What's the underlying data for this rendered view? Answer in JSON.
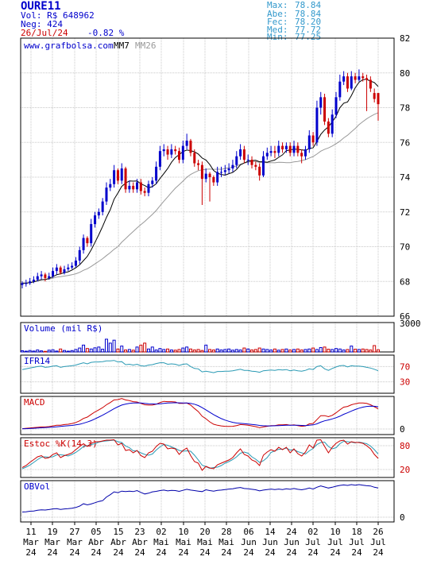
{
  "header": {
    "ticker": "OURE11",
    "volume": "Vol: R$ 648962",
    "trades": "Neg: 424",
    "date": "26/Jul/24",
    "change": "-0.82 %",
    "stats": [
      {
        "label": "Max:",
        "value": "78.84"
      },
      {
        "label": "Abe:",
        "value": "78.84"
      },
      {
        "label": "Fec:",
        "value": "78.20"
      },
      {
        "label": "Med:",
        "value": "77.72"
      },
      {
        "label": "Min:",
        "value": "77.25"
      }
    ]
  },
  "colors": {
    "up": "#0000cc",
    "down": "#cc0000",
    "text_blue": "#0000cc",
    "text_red": "#cc0000",
    "text_cyan": "#3399cc",
    "grid": "#c8c8c8",
    "cyan_line": "#2a9ab4",
    "ma26": "#999999"
  },
  "chart_data": [
    {
      "type": "candlestick",
      "panel": "price",
      "site_label": "www.grafbolsa.com",
      "ma_labels": [
        "MM7",
        "MM26"
      ],
      "ylim": [
        66,
        82
      ],
      "yticks": [
        66,
        68,
        70,
        72,
        74,
        76,
        78,
        80,
        82
      ],
      "grid": true,
      "x_tick_labels": [
        {
          "day": "11",
          "month": "Mar",
          "year": "24"
        },
        {
          "day": "19",
          "month": "Mar",
          "year": "24"
        },
        {
          "day": "27",
          "month": "Mar",
          "year": "24"
        },
        {
          "day": "05",
          "month": "Abr",
          "year": "24"
        },
        {
          "day": "15",
          "month": "Abr",
          "year": "24"
        },
        {
          "day": "23",
          "month": "Abr",
          "year": "24"
        },
        {
          "day": "02",
          "month": "Mai",
          "year": "24"
        },
        {
          "day": "10",
          "month": "Mai",
          "year": "24"
        },
        {
          "day": "20",
          "month": "Mai",
          "year": "24"
        },
        {
          "day": "28",
          "month": "Mai",
          "year": "24"
        },
        {
          "day": "06",
          "month": "Jun",
          "year": "24"
        },
        {
          "day": "14",
          "month": "Jun",
          "year": "24"
        },
        {
          "day": "24",
          "month": "Jun",
          "year": "24"
        },
        {
          "day": "02",
          "month": "Jul",
          "year": "24"
        },
        {
          "day": "10",
          "month": "Jul",
          "year": "24"
        },
        {
          "day": "18",
          "month": "Jul",
          "year": "24"
        },
        {
          "day": "26",
          "month": "Jul",
          "year": "24"
        }
      ],
      "close": [
        67.9,
        67.9,
        68.0,
        68.1,
        68.3,
        68.4,
        68.2,
        68.3,
        68.6,
        68.8,
        68.5,
        68.7,
        68.8,
        68.9,
        69.2,
        69.8,
        70.5,
        70.2,
        71.3,
        71.8,
        72.0,
        72.6,
        73.4,
        73.6,
        74.4,
        73.8,
        74.5,
        73.3,
        73.5,
        73.3,
        73.7,
        73.2,
        73.1,
        73.6,
        73.8,
        74.6,
        75.5,
        75.6,
        75.3,
        75.6,
        75.5,
        75.0,
        75.8,
        76.1,
        75.4,
        74.8,
        74.7,
        73.9,
        74.2,
        74.0,
        73.7,
        74.3,
        74.3,
        74.4,
        74.5,
        74.7,
        75.2,
        75.6,
        75.0,
        75.0,
        74.7,
        74.6,
        74.1,
        75.2,
        75.4,
        75.5,
        75.4,
        75.8,
        75.6,
        75.8,
        75.4,
        75.8,
        75.4,
        75.2,
        75.6,
        76.4,
        76.0,
        78.0,
        78.6,
        77.2,
        76.5,
        77.6,
        78.6,
        79.5,
        79.8,
        79.1,
        79.8,
        79.6,
        79.8,
        79.7,
        79.6,
        79.1,
        78.5,
        78.2
      ],
      "open": [
        67.8,
        67.9,
        67.9,
        68.0,
        68.1,
        68.3,
        68.4,
        68.2,
        68.3,
        68.6,
        68.8,
        68.5,
        68.7,
        68.8,
        68.9,
        69.2,
        69.8,
        70.5,
        70.2,
        71.3,
        71.8,
        72.0,
        72.6,
        73.4,
        73.6,
        74.4,
        73.8,
        74.5,
        73.3,
        73.5,
        73.3,
        73.7,
        73.2,
        73.1,
        73.6,
        73.8,
        74.6,
        75.5,
        75.6,
        75.3,
        75.6,
        75.5,
        75.0,
        75.8,
        76.1,
        75.4,
        74.8,
        74.7,
        73.9,
        74.2,
        74.0,
        73.7,
        74.3,
        74.3,
        74.4,
        74.5,
        74.7,
        75.2,
        75.6,
        75.0,
        75.0,
        74.7,
        74.6,
        74.1,
        75.2,
        75.4,
        75.5,
        75.4,
        75.8,
        75.6,
        75.8,
        75.4,
        75.8,
        75.4,
        75.2,
        75.6,
        76.4,
        76.0,
        78.0,
        78.6,
        77.2,
        76.5,
        77.6,
        78.6,
        79.5,
        79.8,
        79.1,
        79.8,
        79.6,
        79.8,
        79.7,
        79.6,
        78.84,
        78.84
      ],
      "high": [
        68.0,
        68.1,
        68.2,
        68.3,
        68.5,
        68.6,
        68.5,
        68.5,
        68.8,
        69.0,
        68.9,
        68.9,
        69.0,
        69.1,
        69.4,
        70.0,
        70.7,
        70.6,
        71.6,
        72.0,
        72.2,
        72.8,
        73.7,
        73.9,
        74.7,
        74.5,
        74.8,
        74.6,
        73.8,
        73.7,
        73.9,
        73.9,
        73.4,
        73.8,
        74.0,
        74.9,
        75.8,
        75.9,
        75.8,
        75.9,
        75.8,
        75.7,
        76.1,
        76.5,
        76.2,
        75.6,
        75.0,
        74.9,
        74.5,
        74.3,
        74.1,
        74.6,
        74.6,
        74.7,
        74.8,
        75.0,
        75.5,
        75.9,
        75.8,
        75.3,
        75.2,
        74.9,
        74.8,
        75.5,
        75.7,
        75.8,
        75.8,
        76.1,
        76.0,
        76.0,
        76.0,
        76.1,
        76.0,
        75.6,
        75.8,
        76.7,
        76.6,
        78.4,
        78.9,
        78.8,
        77.4,
        77.9,
        78.9,
        79.9,
        80.1,
        80.0,
        80.1,
        80.0,
        80.2,
        80.0,
        79.9,
        79.8,
        79.1,
        78.84
      ],
      "low": [
        67.6,
        67.7,
        67.8,
        67.9,
        68.0,
        68.1,
        68.0,
        68.1,
        68.2,
        68.4,
        68.4,
        68.4,
        68.6,
        68.7,
        68.8,
        69.0,
        69.6,
        70.0,
        70.0,
        71.1,
        71.6,
        71.8,
        72.4,
        73.2,
        73.4,
        73.6,
        73.6,
        73.1,
        73.1,
        73.1,
        73.1,
        73.0,
        72.9,
        72.9,
        73.4,
        73.6,
        74.4,
        75.2,
        75.0,
        75.1,
        75.3,
        74.8,
        74.8,
        75.6,
        75.2,
        74.6,
        74.4,
        72.4,
        73.7,
        72.6,
        73.5,
        73.5,
        74.0,
        74.1,
        74.2,
        74.3,
        74.5,
        75.0,
        74.8,
        74.7,
        74.5,
        74.4,
        73.8,
        74.0,
        75.0,
        75.2,
        75.1,
        75.2,
        75.4,
        75.4,
        75.2,
        75.2,
        75.2,
        74.8,
        75.0,
        75.4,
        75.8,
        75.8,
        77.6,
        77.0,
        76.3,
        76.3,
        77.4,
        78.4,
        79.3,
        78.9,
        79.0,
        79.4,
        79.5,
        79.5,
        77.8,
        78.9,
        78.3,
        77.25
      ]
    },
    {
      "type": "bar",
      "panel": "volume",
      "title": "Volume (mil R$)",
      "ylim": [
        0,
        3000
      ],
      "yticks": [
        3000
      ],
      "values": [
        120,
        80,
        150,
        90,
        200,
        110,
        60,
        180,
        220,
        90,
        300,
        150,
        80,
        140,
        250,
        400,
        700,
        350,
        300,
        420,
        500,
        280,
        1300,
        900,
        1200,
        300,
        600,
        200,
        250,
        180,
        500,
        700,
        900,
        300,
        500,
        200,
        350,
        250,
        300,
        200,
        180,
        250,
        400,
        500,
        300,
        200,
        250,
        150,
        700,
        250,
        200,
        300,
        200,
        250,
        300,
        180,
        250,
        200,
        400,
        300,
        200,
        250,
        400,
        300,
        250,
        200,
        300,
        180,
        250,
        300,
        200,
        250,
        300,
        200,
        250,
        300,
        400,
        250,
        450,
        500,
        280,
        250,
        350,
        300,
        200,
        250,
        600,
        280,
        250,
        300,
        250,
        200,
        650,
        220
      ]
    },
    {
      "type": "line",
      "panel": "rsi",
      "title": "IFR14",
      "ylim": [
        0,
        100
      ],
      "yticks": [
        70,
        30
      ],
      "values": [
        62,
        64,
        66,
        68,
        70,
        71,
        68,
        69,
        71,
        72,
        68,
        70,
        71,
        72,
        74,
        77,
        80,
        77,
        81,
        82,
        82,
        83,
        85,
        85,
        86,
        82,
        83,
        75,
        76,
        74,
        76,
        72,
        71,
        74,
        75,
        78,
        80,
        80,
        76,
        77,
        76,
        73,
        76,
        77,
        70,
        65,
        64,
        56,
        58,
        56,
        54,
        57,
        57,
        58,
        58,
        59,
        61,
        63,
        60,
        60,
        58,
        57,
        55,
        59,
        60,
        61,
        60,
        62,
        61,
        62,
        59,
        61,
        59,
        58,
        60,
        64,
        62,
        70,
        72,
        64,
        60,
        65,
        69,
        72,
        73,
        69,
        72,
        71,
        71,
        70,
        68,
        66,
        63,
        59
      ]
    },
    {
      "type": "line",
      "panel": "macd",
      "title": "MACD",
      "yticks": [
        0
      ],
      "series": [
        {
          "color": "red",
          "values": [
            0.02,
            0.04,
            0.06,
            0.08,
            0.1,
            0.12,
            0.12,
            0.14,
            0.18,
            0.22,
            0.22,
            0.26,
            0.28,
            0.32,
            0.38,
            0.48,
            0.62,
            0.7,
            0.85,
            1.0,
            1.12,
            1.25,
            1.42,
            1.55,
            1.7,
            1.72,
            1.78,
            1.7,
            1.66,
            1.6,
            1.58,
            1.5,
            1.42,
            1.4,
            1.4,
            1.45,
            1.55,
            1.62,
            1.6,
            1.6,
            1.58,
            1.5,
            1.5,
            1.52,
            1.4,
            1.2,
            1.02,
            0.75,
            0.6,
            0.42,
            0.28,
            0.22,
            0.18,
            0.16,
            0.15,
            0.16,
            0.2,
            0.26,
            0.24,
            0.22,
            0.18,
            0.14,
            0.08,
            0.12,
            0.16,
            0.2,
            0.2,
            0.24,
            0.24,
            0.26,
            0.22,
            0.24,
            0.2,
            0.16,
            0.18,
            0.3,
            0.32,
            0.55,
            0.78,
            0.78,
            0.72,
            0.8,
            0.95,
            1.12,
            1.28,
            1.32,
            1.42,
            1.48,
            1.52,
            1.52,
            1.5,
            1.42,
            1.3,
            1.18
          ]
        },
        {
          "color": "blue",
          "values": [
            0.01,
            0.02,
            0.03,
            0.04,
            0.06,
            0.07,
            0.08,
            0.1,
            0.11,
            0.13,
            0.15,
            0.17,
            0.19,
            0.21,
            0.24,
            0.28,
            0.34,
            0.41,
            0.49,
            0.59,
            0.7,
            0.81,
            0.93,
            1.06,
            1.19,
            1.3,
            1.4,
            1.46,
            1.5,
            1.52,
            1.53,
            1.52,
            1.5,
            1.48,
            1.47,
            1.46,
            1.48,
            1.5,
            1.52,
            1.53,
            1.54,
            1.53,
            1.52,
            1.52,
            1.5,
            1.45,
            1.37,
            1.25,
            1.12,
            0.98,
            0.84,
            0.72,
            0.61,
            0.52,
            0.45,
            0.39,
            0.35,
            0.33,
            0.31,
            0.29,
            0.27,
            0.24,
            0.21,
            0.19,
            0.18,
            0.18,
            0.19,
            0.2,
            0.21,
            0.22,
            0.22,
            0.22,
            0.22,
            0.21,
            0.2,
            0.22,
            0.24,
            0.3,
            0.4,
            0.48,
            0.53,
            0.59,
            0.66,
            0.75,
            0.86,
            0.95,
            1.05,
            1.14,
            1.22,
            1.28,
            1.32,
            1.34,
            1.33,
            1.3
          ]
        }
      ]
    },
    {
      "type": "line",
      "panel": "stochastic",
      "title": "Estoc %K(14,3)",
      "ylim": [
        0,
        100
      ],
      "yticks": [
        80,
        20
      ],
      "series": [
        {
          "color": "red",
          "values": [
            25,
            30,
            38,
            45,
            52,
            55,
            48,
            50,
            58,
            62,
            50,
            55,
            58,
            62,
            70,
            78,
            85,
            78,
            86,
            90,
            90,
            92,
            94,
            94,
            95,
            82,
            86,
            68,
            70,
            62,
            68,
            55,
            50,
            62,
            66,
            78,
            86,
            84,
            72,
            74,
            72,
            58,
            68,
            74,
            55,
            40,
            36,
            18,
            28,
            24,
            22,
            32,
            36,
            40,
            44,
            50,
            62,
            72,
            58,
            54,
            44,
            40,
            30,
            56,
            64,
            70,
            66,
            76,
            70,
            76,
            62,
            72,
            60,
            54,
            64,
            82,
            74,
            94,
            95,
            78,
            62,
            76,
            86,
            92,
            94,
            84,
            90,
            88,
            88,
            86,
            80,
            72,
            58,
            48
          ]
        },
        {
          "color": "cyan",
          "values": [
            22,
            26,
            31,
            38,
            45,
            51,
            52,
            51,
            52,
            57,
            57,
            56,
            54,
            58,
            63,
            70,
            78,
            80,
            83,
            85,
            89,
            91,
            92,
            93,
            94,
            90,
            88,
            79,
            75,
            67,
            67,
            62,
            58,
            56,
            59,
            69,
            77,
            83,
            81,
            77,
            73,
            68,
            66,
            67,
            66,
            56,
            44,
            31,
            27,
            23,
            25,
            26,
            30,
            36,
            40,
            45,
            52,
            61,
            64,
            61,
            52,
            46,
            38,
            42,
            50,
            63,
            67,
            71,
            71,
            74,
            69,
            70,
            65,
            62,
            59,
            67,
            73,
            83,
            88,
            89,
            78,
            72,
            75,
            85,
            91,
            90,
            89,
            87,
            89,
            87,
            85,
            79,
            70,
            59
          ]
        }
      ]
    },
    {
      "type": "line",
      "panel": "obv",
      "title": "OBVol",
      "yticks": [
        0
      ],
      "values": [
        1000,
        1050,
        1150,
        1200,
        1350,
        1420,
        1380,
        1480,
        1600,
        1650,
        1500,
        1600,
        1650,
        1720,
        1880,
        2150,
        2600,
        2380,
        2550,
        2800,
        3050,
        3200,
        3900,
        4350,
        4900,
        4750,
        5050,
        4950,
        5050,
        4950,
        5150,
        4800,
        4500,
        4650,
        4900,
        5000,
        5150,
        5250,
        5100,
        5200,
        5150,
        5000,
        5200,
        5400,
        5250,
        5150,
        5050,
        4950,
        5300,
        5150,
        5050,
        5200,
        5250,
        5350,
        5450,
        5500,
        5650,
        5750,
        5550,
        5500,
        5400,
        5300,
        5100,
        5250,
        5350,
        5450,
        5350,
        5450,
        5350,
        5500,
        5400,
        5550,
        5400,
        5300,
        5450,
        5650,
        5450,
        5800,
        6050,
        5850,
        5650,
        5800,
        6000,
        6150,
        6250,
        6150,
        6300,
        6200,
        6300,
        6200,
        6100,
        6050,
        5800,
        5650
      ]
    }
  ]
}
